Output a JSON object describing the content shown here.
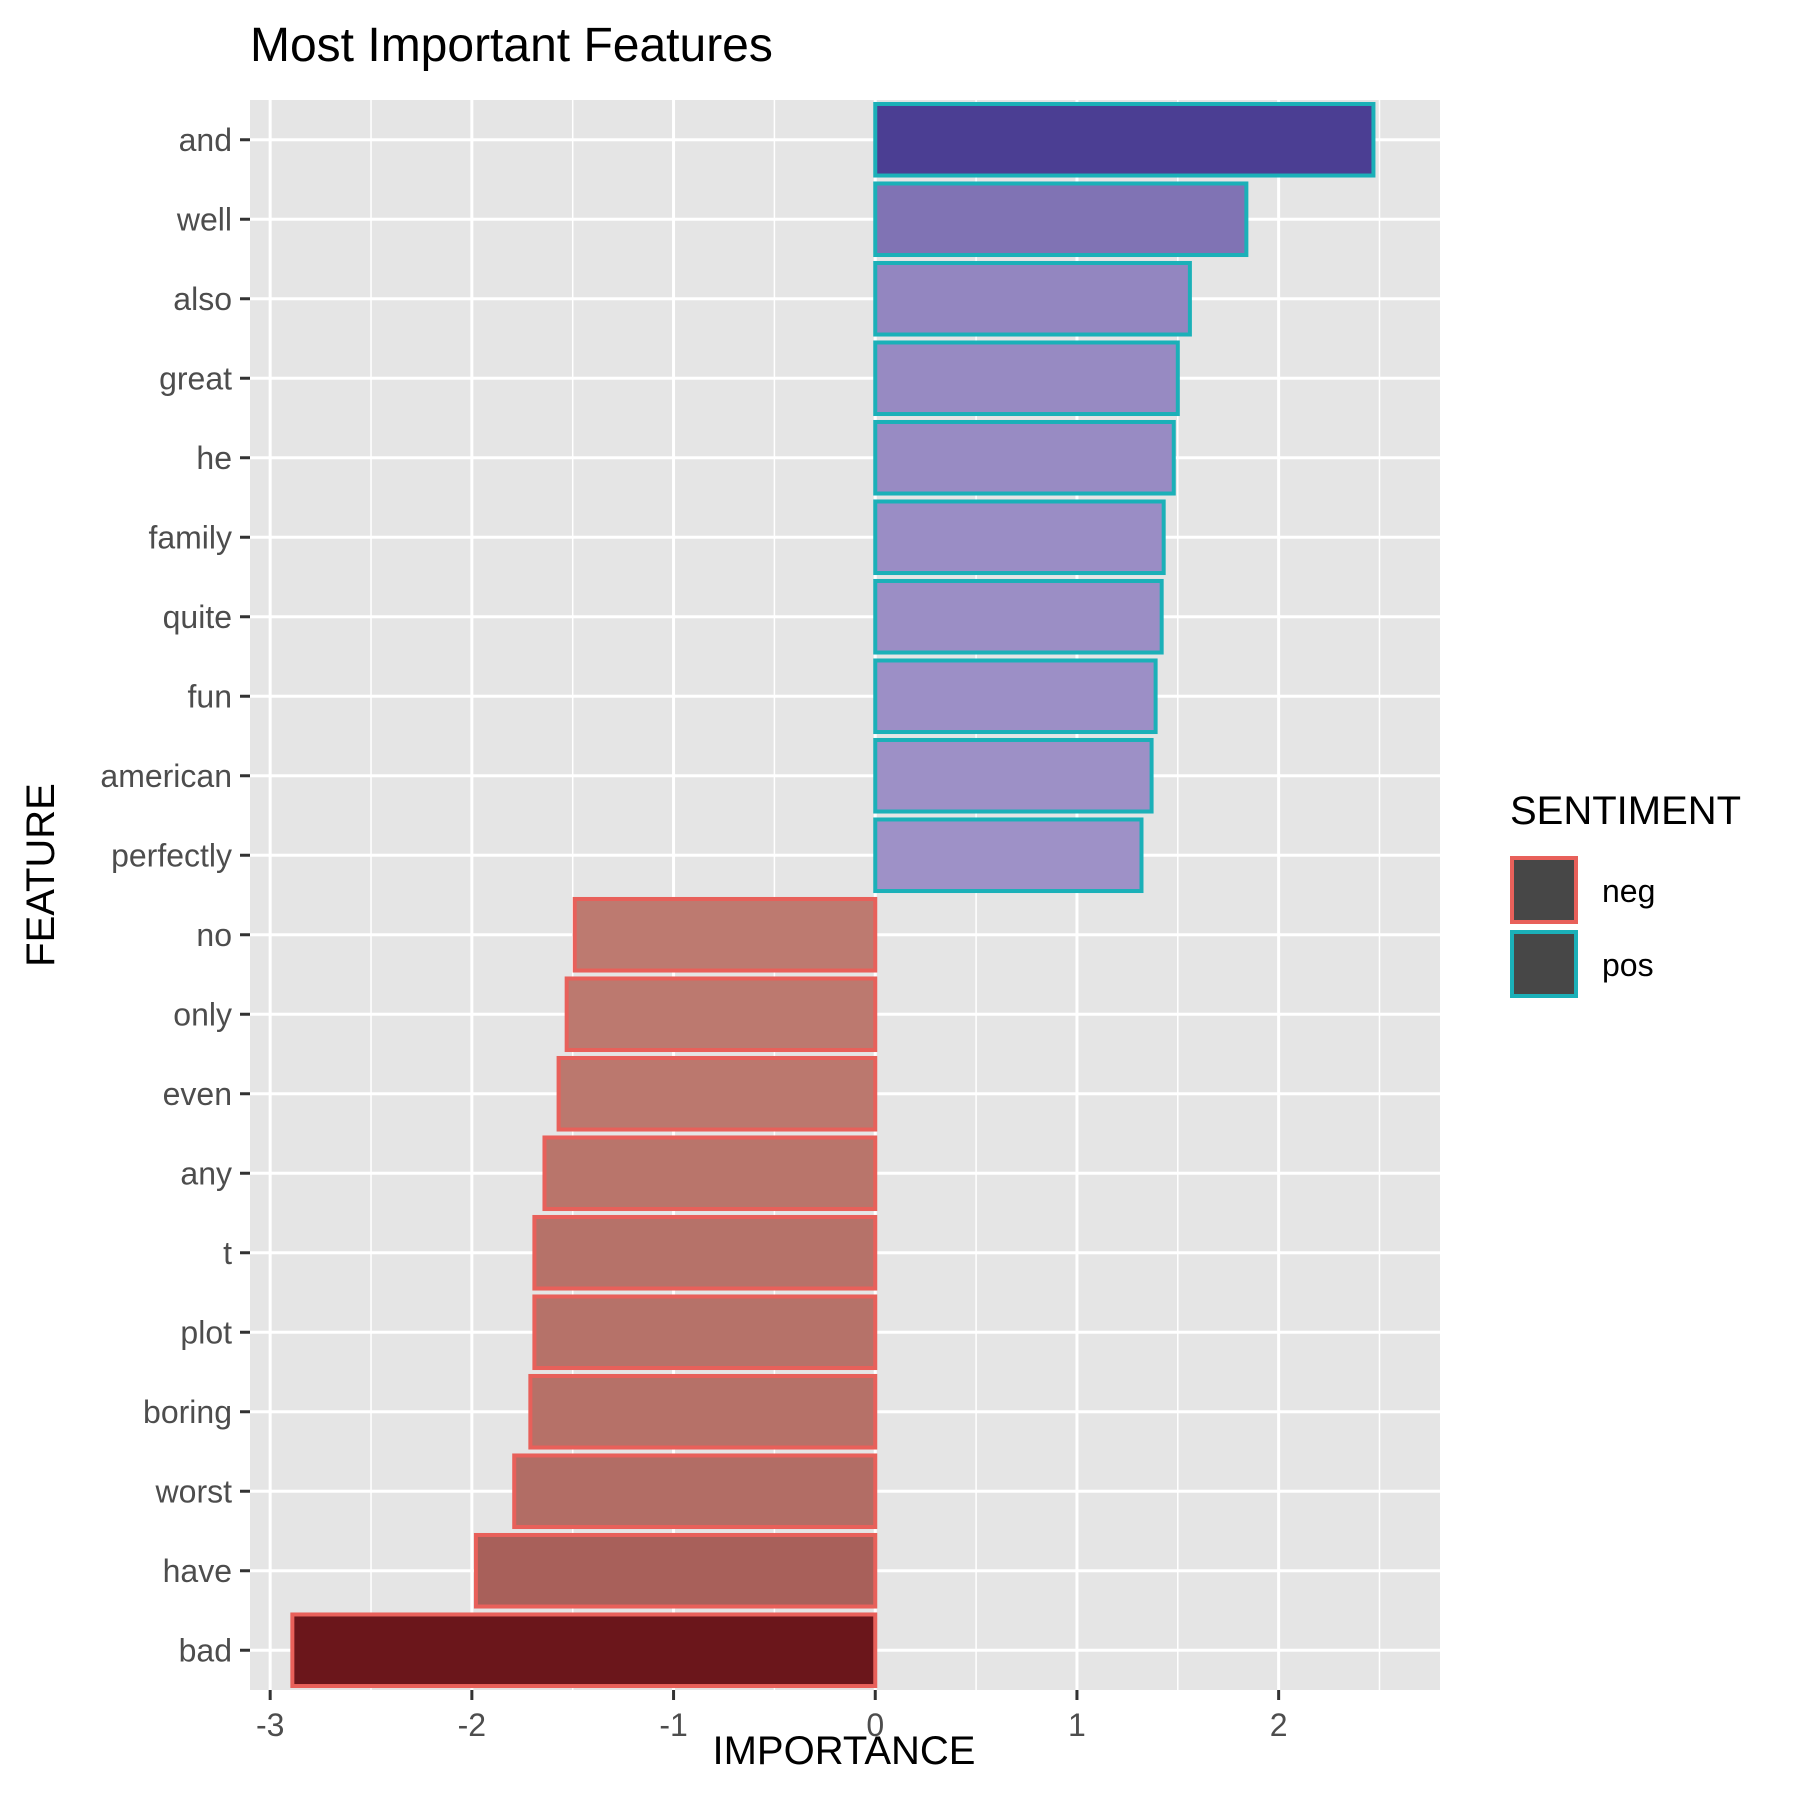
{
  "chart_data": {
    "type": "bar",
    "orientation": "horizontal",
    "title": "Most Important Features",
    "xlabel": "IMPORTANCE",
    "ylabel": "FEATURE",
    "xlim": [
      -3.1,
      2.8
    ],
    "xticks": [
      -3,
      -2,
      -1,
      0,
      1,
      2
    ],
    "xtick_labels": [
      "-3",
      "-2",
      "-1",
      "0",
      "1",
      "2"
    ],
    "grid": true,
    "legend": {
      "title": "SENTIMENT",
      "placement": "right",
      "entries": [
        {
          "label": "neg",
          "border_color": "#E8605A"
        },
        {
          "label": "pos",
          "border_color": "#1BB0B8"
        }
      ]
    },
    "categories": [
      "and",
      "well",
      "also",
      "great",
      "he",
      "family",
      "quite",
      "fun",
      "american",
      "perfectly",
      "no",
      "only",
      "even",
      "any",
      "t",
      "plot",
      "boring",
      "worst",
      "have",
      "bad"
    ],
    "values": [
      2.47,
      1.84,
      1.56,
      1.5,
      1.48,
      1.43,
      1.42,
      1.39,
      1.37,
      1.32,
      -1.49,
      -1.53,
      -1.57,
      -1.64,
      -1.69,
      -1.69,
      -1.71,
      -1.79,
      -1.98,
      -2.89
    ],
    "sentiment": [
      "pos",
      "pos",
      "pos",
      "pos",
      "pos",
      "pos",
      "pos",
      "pos",
      "pos",
      "pos",
      "neg",
      "neg",
      "neg",
      "neg",
      "neg",
      "neg",
      "neg",
      "neg",
      "neg",
      "neg"
    ],
    "colors": {
      "panel_background": "#E5E5E5",
      "gridline": "#FFFFFF",
      "neg_fill_light": "#BD7A70",
      "neg_fill_dark": "#6B161B",
      "pos_fill_light": "#9E91C7",
      "pos_fill_dark": "#4B3E93",
      "legend_key_fill": "#474747",
      "text": "#000000",
      "tick_text": "#4D4D4D"
    }
  }
}
